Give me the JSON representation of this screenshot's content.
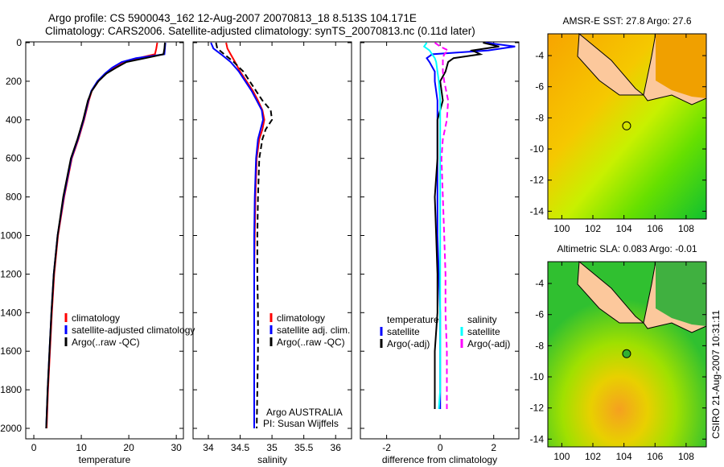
{
  "title": {
    "line1": "Argo profile: CS 5900043_162 12-Aug-2007 20070813_18 8.513S 104.171E",
    "line2": "Climatology: CARS2006. Satellite-adjusted climatology: synTS_20070813.nc (0.11d later)"
  },
  "side_label": "CSIRO 21-Aug-2007 10:31:11",
  "credit": {
    "line1": "Argo AUSTRALIA",
    "line2": "PI: Susan Wijffels"
  },
  "colors": {
    "climatology": "#ff0000",
    "satellite": "#0000ff",
    "argo": "#000000",
    "sal_satellite": "#00ffff",
    "sal_argo": "#ff00ff",
    "land": "#fcc89c"
  },
  "chart_data": [
    {
      "type": "line",
      "id": "temperature",
      "xlabel": "temperature",
      "ylabel": "",
      "xlim": [
        -1.7,
        31.5
      ],
      "ylim": [
        2000,
        0
      ],
      "xticks": [
        0,
        10,
        20,
        30
      ],
      "yticks": [
        0,
        200,
        400,
        600,
        800,
        1000,
        1200,
        1400,
        1600,
        1800,
        2000
      ],
      "depth": [
        0,
        30,
        60,
        80,
        100,
        130,
        160,
        200,
        250,
        300,
        400,
        500,
        600,
        800,
        1000,
        1200,
        1400,
        1600,
        1800,
        2000
      ],
      "legend": [
        "climatology",
        "satellite-adjusted climatology",
        "Argo(..raw -QC)"
      ],
      "series": [
        {
          "name": "climatology",
          "values": [
            26.0,
            25.8,
            25.5,
            22.0,
            19.0,
            17.0,
            15.2,
            13.6,
            12.2,
            11.6,
            10.6,
            9.4,
            8.0,
            6.4,
            5.1,
            4.3,
            3.8,
            3.4,
            3.0,
            2.7
          ]
        },
        {
          "name": "satellite-adjusted climatology",
          "values": [
            27.7,
            27.6,
            27.5,
            21.5,
            18.5,
            16.5,
            15.0,
            13.4,
            12.1,
            11.5,
            10.5,
            9.3,
            7.9,
            6.3,
            5.0,
            4.2,
            3.7,
            3.3,
            2.9,
            2.6
          ]
        },
        {
          "name": "Argo(..raw -QC)",
          "values": [
            27.6,
            27.5,
            27.3,
            23.5,
            19.5,
            17.3,
            15.3,
            13.6,
            12.2,
            11.4,
            10.4,
            9.2,
            7.8,
            6.2,
            5.0,
            4.2,
            3.7,
            3.3,
            2.9,
            2.6
          ]
        }
      ]
    },
    {
      "type": "line",
      "id": "salinity",
      "xlabel": "salinity",
      "xlim": [
        33.76,
        36.25
      ],
      "ylim": [
        2000,
        0
      ],
      "xticks": [
        34,
        34.5,
        35,
        35.5,
        36
      ],
      "depth": [
        0,
        30,
        60,
        100,
        150,
        200,
        250,
        300,
        350,
        400,
        450,
        500,
        600,
        800,
        1000,
        1200,
        1400,
        1600,
        1800,
        2000
      ],
      "legend": [
        "climatology",
        "satellite adj. clim.",
        "Argo(..raw -QC)"
      ],
      "series": [
        {
          "name": "climatology",
          "values": [
            34.28,
            34.3,
            34.35,
            34.42,
            34.5,
            34.6,
            34.7,
            34.78,
            34.85,
            34.88,
            34.85,
            34.8,
            34.76,
            34.74,
            34.73,
            34.72,
            34.72,
            34.72,
            34.72,
            34.72
          ]
        },
        {
          "name": "satellite adj. clim.",
          "values": [
            34.04,
            34.08,
            34.2,
            34.35,
            34.48,
            34.58,
            34.68,
            34.76,
            34.84,
            34.86,
            34.82,
            34.78,
            34.75,
            34.73,
            34.72,
            34.72,
            34.72,
            34.72,
            34.72,
            34.72
          ]
        },
        {
          "name": "Argo(..raw -QC)",
          "values": [
            34.12,
            34.14,
            34.25,
            34.4,
            34.55,
            34.65,
            34.75,
            34.85,
            34.98,
            35.0,
            34.9,
            34.85,
            34.8,
            34.78,
            34.77,
            34.77,
            34.78,
            34.78,
            34.77,
            34.76
          ]
        }
      ]
    },
    {
      "type": "line",
      "id": "difference",
      "xlabel": "difference from climatology",
      "xlim": [
        -2.98,
        2.94
      ],
      "ylim": [
        2000,
        0
      ],
      "xticks": [
        -2,
        0,
        2
      ],
      "depth": [
        0,
        20,
        40,
        60,
        80,
        100,
        150,
        200,
        300,
        400,
        500,
        600,
        800,
        1000,
        1200,
        1400,
        1600,
        1800,
        1900
      ],
      "legend": {
        "temperature_header": "temperature",
        "salinity_header": "salinity",
        "satellite": "satellite",
        "argo": "Argo(-adj)"
      },
      "series": [
        {
          "name": "temperature satellite",
          "values": [
            1.7,
            2.8,
            1.8,
            -0.3,
            -0.5,
            -0.4,
            -0.2,
            -0.2,
            -0.1,
            -0.1,
            -0.1,
            -0.1,
            -0.1,
            -0.1,
            -0.05,
            0.0,
            0.0,
            0.0,
            0.0
          ]
        },
        {
          "name": "temperature Argo(-adj)",
          "values": [
            1.6,
            2.2,
            1.2,
            1.5,
            0.5,
            0.3,
            0.2,
            0.0,
            0.1,
            -0.1,
            -0.1,
            -0.1,
            -0.2,
            -0.15,
            -0.1,
            -0.1,
            -0.2,
            -0.2,
            -0.2
          ]
        },
        {
          "name": "salinity satellite",
          "values": [
            -0.5,
            -0.6,
            -0.4,
            -0.3,
            -0.2,
            -0.15,
            -0.1,
            -0.05,
            0.0,
            0.0,
            0.0,
            0.0,
            0.0,
            0.0,
            0.0,
            0.0,
            0.0,
            0.0,
            -0.05
          ]
        },
        {
          "name": "salinity Argo(-adj)",
          "values": [
            -0.2,
            0.0,
            0.3,
            0.15,
            0.1,
            0.1,
            0.1,
            0.15,
            0.3,
            0.25,
            0.1,
            0.05,
            0.1,
            0.15,
            0.2,
            0.2,
            0.25,
            0.25,
            0.25
          ]
        }
      ]
    },
    {
      "type": "heatmap",
      "id": "sst_map",
      "title": "AMSR-E SST: 27.8 Argo: 27.6",
      "xlim": [
        99.1,
        109.3
      ],
      "ylim": [
        -14.5,
        -2.6
      ],
      "xticks": [
        100,
        102,
        104,
        106,
        108
      ],
      "yticks": [
        -4,
        -6,
        -8,
        -10,
        -12,
        -14
      ],
      "argo_position": {
        "lon": 104.171,
        "lat": -8.513
      }
    },
    {
      "type": "heatmap",
      "id": "sla_map",
      "title": "Altimetric SLA: 0.083 Argo: -0.01",
      "xlim": [
        99.1,
        109.3
      ],
      "ylim": [
        -14.5,
        -2.6
      ],
      "xticks": [
        100,
        102,
        104,
        106,
        108
      ],
      "yticks": [
        -4,
        -6,
        -8,
        -10,
        -12,
        -14
      ],
      "argo_position": {
        "lon": 104.171,
        "lat": -8.513
      }
    }
  ]
}
